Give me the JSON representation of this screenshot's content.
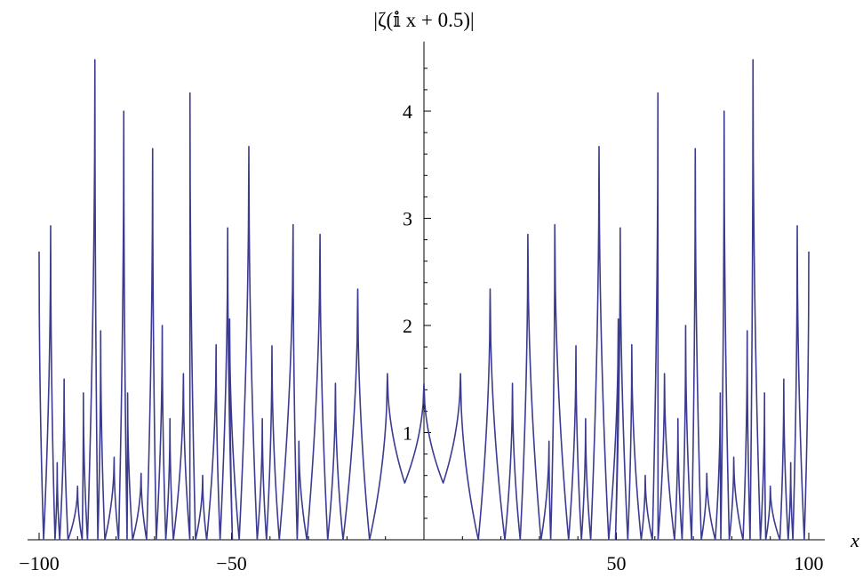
{
  "chart_data": {
    "type": "line",
    "title": "|ζ(𝕚 x + 0.5)|",
    "xlabel": "x",
    "ylabel": "",
    "xlim": [
      -100,
      100
    ],
    "ylim": [
      0,
      4.5
    ],
    "x_ticks": [
      -100,
      -50,
      50,
      100
    ],
    "x_tick_labels": [
      "−100",
      "−50",
      "50",
      "100"
    ],
    "y_ticks": [
      1,
      2,
      3,
      4
    ],
    "y_tick_labels": [
      "1",
      "2",
      "3",
      "4"
    ],
    "grid": false,
    "legend": "none",
    "symmetric_about_zero": true,
    "series": [
      {
        "color": "#3b3b8f",
        "x": [
          0,
          5.0,
          9.5,
          14.13,
          17.2,
          21.02,
          23.0,
          25.01,
          27.0,
          30.42,
          32.5,
          32.94,
          34.0,
          37.59,
          39.5,
          40.92,
          42.0,
          43.33,
          45.5,
          48.01,
          50.5,
          49.77,
          51.0,
          52.97,
          54.0,
          56.45,
          57.5,
          59.35,
          60.8,
          60.83,
          62.5,
          65.11,
          66.0,
          67.08,
          68.0,
          69.55,
          70.5,
          72.07,
          73.5,
          75.7,
          77.0,
          77.14,
          78.0,
          79.34,
          80.5,
          82.91,
          84.0,
          84.74,
          85.5,
          87.43,
          88.5,
          88.81,
          90.0,
          92.49,
          93.5,
          94.65,
          95.3,
          95.87,
          97.0,
          98.83,
          100
        ],
        "y": [
          1.46,
          0.53,
          1.55,
          0.0,
          2.34,
          0.0,
          1.46,
          0.0,
          2.85,
          0.0,
          0.92,
          0.0,
          2.94,
          0.0,
          1.81,
          0.0,
          1.13,
          0.0,
          3.67,
          0.0,
          2.06,
          0.0,
          2.91,
          0.0,
          1.82,
          0.0,
          0.6,
          0.0,
          4.17,
          0.0,
          1.55,
          0.0,
          1.13,
          0.0,
          2.0,
          0.0,
          3.65,
          0.0,
          0.62,
          0.0,
          1.37,
          0.0,
          4.0,
          0.0,
          0.77,
          0.0,
          1.95,
          0.0,
          4.48,
          0.0,
          1.37,
          0.0,
          0.5,
          0.0,
          1.5,
          0.0,
          0.72,
          0.0,
          2.93,
          0.0,
          2.69
        ]
      }
    ]
  }
}
